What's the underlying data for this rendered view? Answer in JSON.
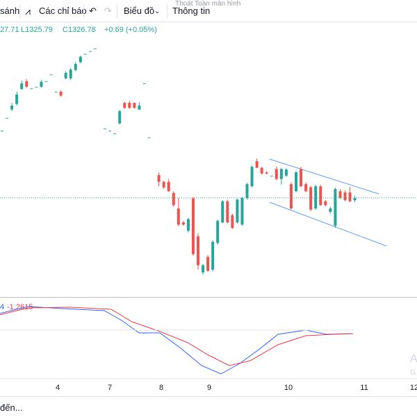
{
  "toolbar": {
    "compare": "sánh",
    "indicators": "Các chỉ báo",
    "chart": "Biểu đồ",
    "info": "Thông tin",
    "tooltip": "Thoát Toàn màn hình"
  },
  "legend": {
    "open": "27.71",
    "low": "L1325.79",
    "close": "C1326.78",
    "change": "+0.69 (+0.05%)"
  },
  "macd_legend": {
    "a": "4",
    "b": "-1.2615"
  },
  "watermark": {
    "a": "A",
    "b": "G"
  },
  "footer": "đến...",
  "chart_data": {
    "type": "candlestick",
    "categories": [
      "4",
      "7",
      "8",
      "9",
      "10",
      "11",
      "12"
    ],
    "ylim": [
      1312,
      1358
    ],
    "up_color": "#26a69a",
    "down_color": "#ef5350",
    "candles": [
      [
        1338.5,
        1338.5,
        1338.5,
        1338.5
      ],
      [
        1340.8,
        1340.8,
        1340.8,
        1340.8
      ],
      [
        1342.3,
        1343.5,
        1342,
        1343
      ],
      [
        1343.3,
        1345.5,
        1343,
        1345
      ],
      [
        1346,
        1347.5,
        1345.8,
        1347
      ],
      [
        1347.4,
        1347.8,
        1346.2,
        1346.4
      ],
      [
        1346.1,
        1346.1,
        1346.1,
        1346.1
      ],
      [
        1346.4,
        1346.4,
        1346.4,
        1346.4
      ],
      [
        1346.4,
        1347.6,
        1346.2,
        1347.3
      ],
      [
        1347.4,
        1347.4,
        1347.4,
        1347.4
      ],
      [
        1348.6,
        1348.6,
        1348.6,
        1348.6
      ],
      [
        1345.5,
        1345.5,
        1345.5,
        1345.5
      ],
      [
        1345.5,
        1345.8,
        1344.6,
        1344.8
      ],
      [
        1347.9,
        1349.2,
        1347.7,
        1348.9
      ],
      [
        1347.9,
        1349.8,
        1347.6,
        1349.5
      ],
      [
        1349.4,
        1350.8,
        1349.2,
        1350.5
      ],
      [
        1350.8,
        1352,
        1350.6,
        1351.8
      ],
      [
        1352.3,
        1352.3,
        1352.3,
        1352.3
      ],
      [
        1352.8,
        1352.8,
        1352.8,
        1352.8
      ],
      [
        1353.3,
        1353.3,
        1353.3,
        1353.3
      ],
      null,
      [
        1338.9,
        1338.9,
        1338.9,
        1338.9
      ],
      [
        1338.5,
        1338.5,
        1338.5,
        1338.5
      ],
      [
        1338,
        1338,
        1338,
        1338
      ],
      [
        1339.8,
        1342.3,
        1339.6,
        1342
      ],
      [
        1343.5,
        1343.7,
        1342.4,
        1342.6
      ],
      [
        1343.5,
        1343.9,
        1342.4,
        1342.6
      ],
      [
        1343.5,
        1343.6,
        1342.5,
        1342.6
      ],
      [
        1342.3,
        1343.6,
        1342.2,
        1343
      ],
      [
        1347,
        1347,
        1347,
        1347
      ],
      [
        1337.3,
        1337.3,
        1337.3,
        1337.3
      ],
      null,
      [
        1330.5,
        1331,
        1328.5,
        1329.3
      ],
      [
        1329.3,
        1329.5,
        1328,
        1328.3
      ],
      [
        1329.3,
        1329.8,
        1327.5,
        1327.6
      ],
      [
        1327.3,
        1327.6,
        1324.8,
        1325.1
      ],
      [
        1324.5,
        1326.4,
        1321.3,
        1321.6
      ],
      [
        1322,
        1322.3,
        1321.4,
        1321.6
      ],
      [
        1320.5,
        1322.8,
        1320.2,
        1322.6
      ],
      [
        1326.3,
        1326.6,
        1316,
        1316.3
      ],
      [
        1319.5,
        1320.1,
        1313.5,
        1314.3
      ],
      [
        1313,
        1314.5,
        1312.6,
        1314.3
      ],
      [
        1315.8,
        1316.1,
        1313.1,
        1313.3
      ],
      [
        1313.5,
        1318.8,
        1313.2,
        1318.5
      ],
      [
        1318.3,
        1322.5,
        1318,
        1322.3
      ],
      [
        1322,
        1326,
        1321.8,
        1325.8
      ],
      [
        1325.8,
        1326.1,
        1321.8,
        1322
      ],
      [
        1323.3,
        1323.6,
        1320.8,
        1321
      ],
      [
        1322,
        1326.3,
        1321.8,
        1326.1
      ],
      [
        1321.6,
        1326.6,
        1321.4,
        1326.4
      ],
      [
        1326.4,
        1329.1,
        1326.1,
        1328.9
      ],
      [
        1328.5,
        1332.3,
        1328.3,
        1332
      ],
      [
        1333,
        1333.5,
        1331.8,
        1331.8
      ],
      [
        1331.8,
        1332,
        1330.6,
        1330.8
      ],
      [
        1331,
        1331.2,
        1330.6,
        1330.8
      ],
      [
        1330.4,
        1330.4,
        1330.4,
        1330.4
      ],
      [
        1331.6,
        1332,
        1329.6,
        1329.8
      ],
      [
        1329.8,
        1331.8,
        1328.8,
        1331.6
      ],
      [
        1330.4,
        1331.8,
        1330.2,
        1331.5
      ],
      [
        1328.9,
        1329.2,
        1324.3,
        1324.5
      ],
      [
        1327.6,
        1331.3,
        1327.4,
        1331
      ],
      [
        1331.6,
        1332,
        1328.3,
        1328.5
      ],
      [
        1328.9,
        1329.2,
        1327.4,
        1327.6
      ],
      [
        1328.3,
        1328.6,
        1324,
        1324.3
      ],
      [
        1324.5,
        1328.8,
        1324.3,
        1328.5
      ],
      [
        1328.5,
        1328.8,
        1325,
        1325.1
      ],
      [
        1325.8,
        1326,
        1324.9,
        1325.1
      ],
      [
        1323.9,
        1324.8,
        1323.6,
        1324.5
      ],
      [
        1321.4,
        1328.3,
        1321,
        1328
      ],
      [
        1327.6,
        1328,
        1326.2,
        1326.4
      ],
      [
        1327.4,
        1327.8,
        1325.8,
        1326
      ],
      [
        1327.4,
        1328.4,
        1325.6,
        1325.8
      ],
      [
        1326,
        1326.8,
        1325.6,
        1326.4
      ]
    ]
  }
}
